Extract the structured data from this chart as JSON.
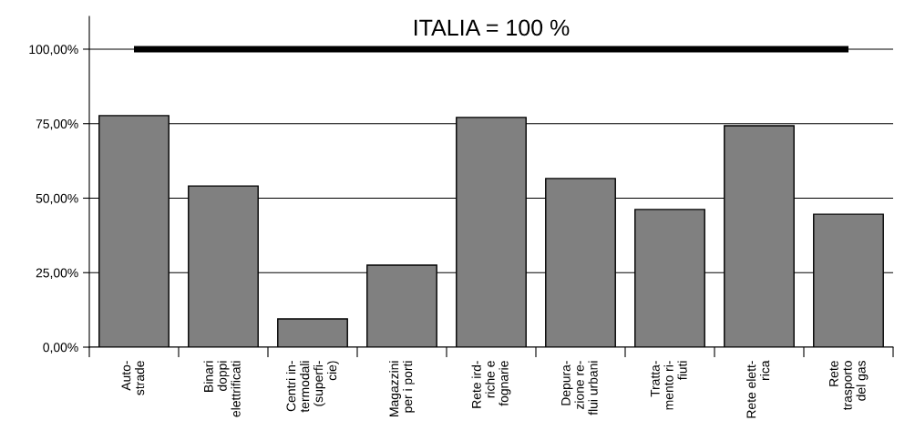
{
  "chart_data": {
    "type": "bar",
    "categories": [
      "Auto-\nstrade",
      "Binari\ndoppi\nelettrificati",
      "Centri in-\ntermodali\n(superfi-\ncie)",
      "Magazzini\nper i porti",
      "Rete ird-\nriche e\nfognarie",
      "Depura-\nzione re-\nflui urbani",
      "Tratta-\nmento ri-\nfiuti",
      "Rete elett-\nrica",
      "Rete\ntrasporto\ndel gas"
    ],
    "values": [
      77.7,
      54.1,
      9.5,
      27.5,
      77.1,
      56.6,
      46.2,
      74.3,
      44.6
    ],
    "color": "#808080",
    "ylim": [
      0,
      111
    ],
    "yticks": [
      {
        "value": 0,
        "label": "0,00%"
      },
      {
        "value": 25,
        "label": "25,00%"
      },
      {
        "value": 50,
        "label": "50,00%"
      },
      {
        "value": 75,
        "label": "75,00%"
      },
      {
        "value": 100,
        "label": "100,00%"
      }
    ],
    "grid": "y",
    "ref_lines": [
      {
        "axis": "y",
        "value": 100,
        "label": "ITALIA = 100 %",
        "color": "#000000"
      }
    ]
  }
}
